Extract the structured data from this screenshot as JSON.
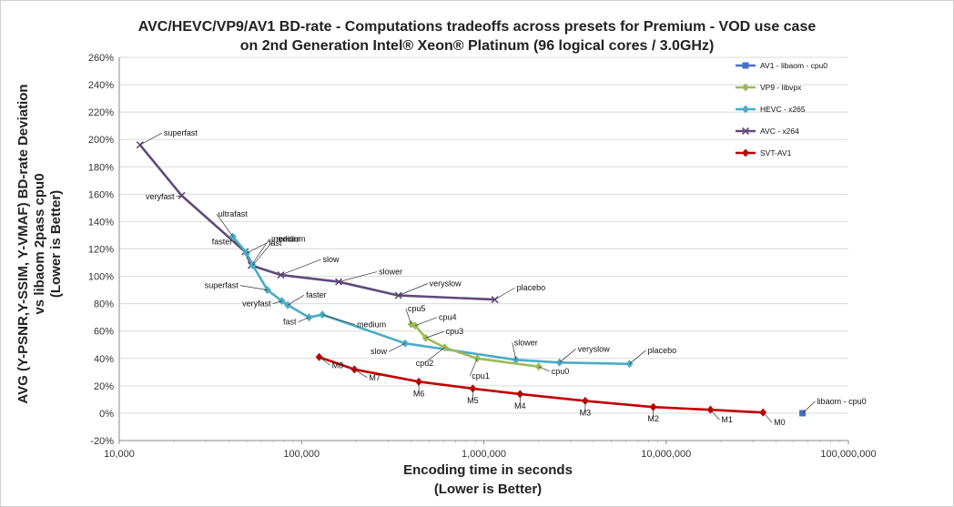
{
  "chart_data": {
    "type": "line",
    "title": [
      "AVC/HEVC/VP9/AV1 BD-rate - Computations tradeoffs across presets for Premium - VOD use case",
      "on 2nd Generation  Intel® Xeon® Platinum (96 logical cores / 3.0GHz)"
    ],
    "xlabel": [
      "Encoding time in seconds",
      "(Lower is Better)"
    ],
    "ylabel": [
      "AVG (Y-PSNR,Y-SSIM, Y-VMAF) BD-rate Deviation",
      "vs libaom 2pass cpu0",
      "(Lower is Better)"
    ],
    "x_scale": "log",
    "xlim": [
      10000,
      100000000
    ],
    "ylim": [
      -20,
      260
    ],
    "x_ticks": [
      {
        "v": 10000,
        "label": "10,000"
      },
      {
        "v": 100000,
        "label": "100,000"
      },
      {
        "v": 1000000,
        "label": "1,000,000"
      },
      {
        "v": 10000000,
        "label": "10,000,000"
      },
      {
        "v": 100000000,
        "label": "100,000,000"
      }
    ],
    "y_ticks": [
      {
        "v": -20,
        "label": "-20%"
      },
      {
        "v": 0,
        "label": "0%"
      },
      {
        "v": 20,
        "label": "20%"
      },
      {
        "v": 40,
        "label": "40%"
      },
      {
        "v": 60,
        "label": "60%"
      },
      {
        "v": 80,
        "label": "80%"
      },
      {
        "v": 100,
        "label": "100%"
      },
      {
        "v": 120,
        "label": "120%"
      },
      {
        "v": 140,
        "label": "140%"
      },
      {
        "v": 160,
        "label": "160%"
      },
      {
        "v": 180,
        "label": "180%"
      },
      {
        "v": 200,
        "label": "200%"
      },
      {
        "v": 220,
        "label": "220%"
      },
      {
        "v": 240,
        "label": "240%"
      },
      {
        "v": 260,
        "label": "260%"
      }
    ],
    "grid": "horizontal",
    "legend_position": "right",
    "series": [
      {
        "name": "AV1 - libaom - cpu0",
        "color": "#4472c4",
        "marker": "square",
        "points": [
          {
            "x": 56000000,
            "y": 0,
            "label": "libaom - cpu0"
          }
        ]
      },
      {
        "name": "VP9 - libvpx",
        "color": "#9bbb59",
        "marker": "diamond",
        "points": [
          {
            "x": 400000,
            "y": 65,
            "label": "cpu5"
          },
          {
            "x": 420000,
            "y": 64,
            "label": "cpu4"
          },
          {
            "x": 480000,
            "y": 55,
            "label": "cpu3"
          },
          {
            "x": 610000,
            "y": 48,
            "label": "cpu2"
          },
          {
            "x": 920000,
            "y": 40,
            "label": "cpu1"
          },
          {
            "x": 2000000,
            "y": 34,
            "label": "cpu0"
          }
        ]
      },
      {
        "name": "HEVC - x265",
        "color": "#4bacc6",
        "marker": "diamond",
        "points": [
          {
            "x": 42000,
            "y": 129,
            "label": "ultrafast"
          },
          {
            "x": 50000,
            "y": 117,
            "label": "fast"
          },
          {
            "x": 54000,
            "y": 108,
            "label": "medium"
          },
          {
            "x": 65000,
            "y": 90,
            "label": "superfast"
          },
          {
            "x": 78000,
            "y": 82,
            "label": "veryfast"
          },
          {
            "x": 84000,
            "y": 79,
            "label": "faster"
          },
          {
            "x": 110000,
            "y": 70,
            "label": "fast"
          },
          {
            "x": 130000,
            "y": 72,
            "label": "medium"
          },
          {
            "x": 370000,
            "y": 51,
            "label": "slow"
          },
          {
            "x": 1500000,
            "y": 39,
            "label": "slower"
          },
          {
            "x": 2600000,
            "y": 37,
            "label": "veryslow"
          },
          {
            "x": 6300000,
            "y": 36,
            "label": "placebo"
          }
        ]
      },
      {
        "name": "AVC - x264",
        "color": "#604a7b",
        "marker": "x",
        "points": [
          {
            "x": 13000,
            "y": 196,
            "label": "superfast"
          },
          {
            "x": 22000,
            "y": 159,
            "label": "veryfast"
          },
          {
            "x": 49000,
            "y": 118,
            "label": "faster"
          },
          {
            "x": 53000,
            "y": 108,
            "label": "medium"
          },
          {
            "x": 77000,
            "y": 101,
            "label": "slow"
          },
          {
            "x": 160000,
            "y": 96,
            "label": "slower"
          },
          {
            "x": 340000,
            "y": 86,
            "label": "veryslow"
          },
          {
            "x": 1150000,
            "y": 83,
            "label": "placebo"
          }
        ]
      },
      {
        "name": "SVT-AV1",
        "color": "#c00000",
        "marker": "diamond",
        "points": [
          {
            "x": 125000,
            "y": 41,
            "label": "M8"
          },
          {
            "x": 195000,
            "y": 32,
            "label": "M7"
          },
          {
            "x": 440000,
            "y": 23,
            "label": "M6"
          },
          {
            "x": 870000,
            "y": 18,
            "label": "M5"
          },
          {
            "x": 1580000,
            "y": 14,
            "label": "M4"
          },
          {
            "x": 3600000,
            "y": 9,
            "label": "M3"
          },
          {
            "x": 8500000,
            "y": 4.5,
            "label": "M2"
          },
          {
            "x": 17500000,
            "y": 2.5,
            "label": "M1"
          },
          {
            "x": 34000000,
            "y": 0.5,
            "label": "M0"
          }
        ]
      }
    ]
  }
}
